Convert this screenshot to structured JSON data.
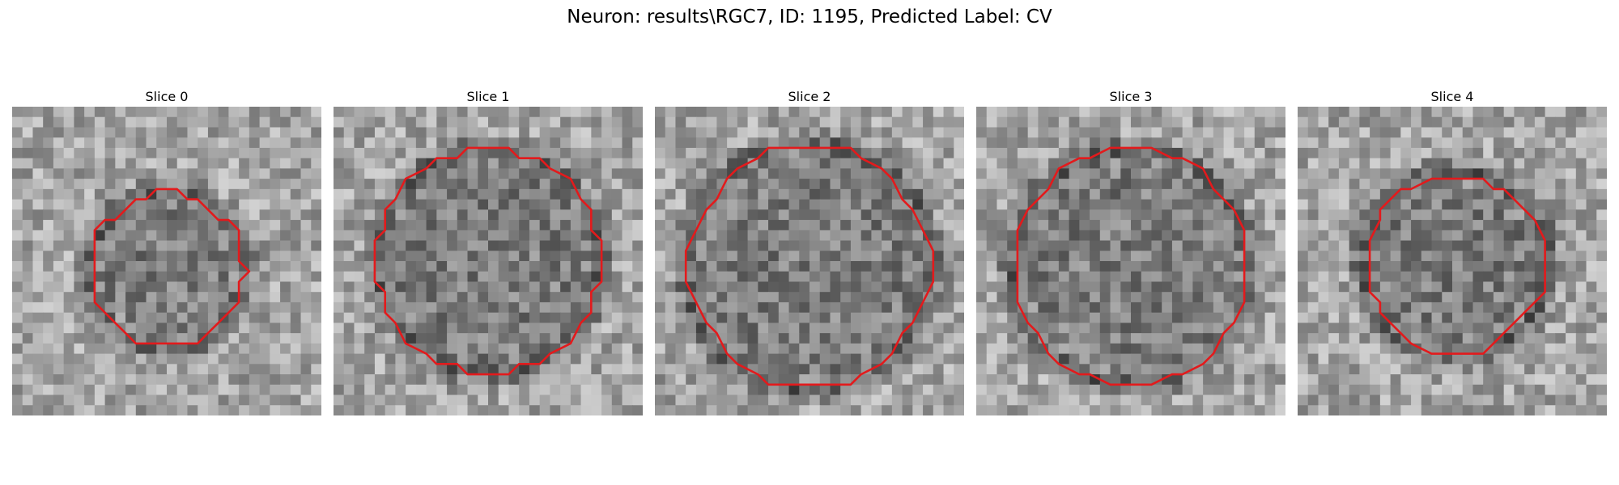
{
  "figure": {
    "title": "Neuron: results\\RGC7, ID: 1195, Predicted Label: CV"
  },
  "slices": [
    {
      "title": "Slice 0",
      "contour_color": "#e31a1c",
      "contour_radius": 0.25,
      "center": [
        0.5,
        0.53
      ],
      "ring_radius": 0.25,
      "seed": 11
    },
    {
      "title": "Slice 1",
      "contour_color": "#e31a1c",
      "contour_radius": 0.36,
      "center": [
        0.5,
        0.5
      ],
      "ring_radius": 0.36,
      "seed": 23
    },
    {
      "title": "Slice 2",
      "contour_color": "#e31a1c",
      "contour_radius": 0.39,
      "center": [
        0.5,
        0.52
      ],
      "ring_radius": 0.4,
      "seed": 37
    },
    {
      "title": "Slice 3",
      "contour_color": "#e31a1c",
      "contour_radius": 0.38,
      "center": [
        0.5,
        0.52
      ],
      "ring_radius": 0.38,
      "seed": 51
    },
    {
      "title": "Slice 4",
      "contour_color": "#e31a1c",
      "contour_radius": 0.29,
      "center": [
        0.51,
        0.51
      ],
      "ring_radius": 0.3,
      "seed": 67
    }
  ]
}
